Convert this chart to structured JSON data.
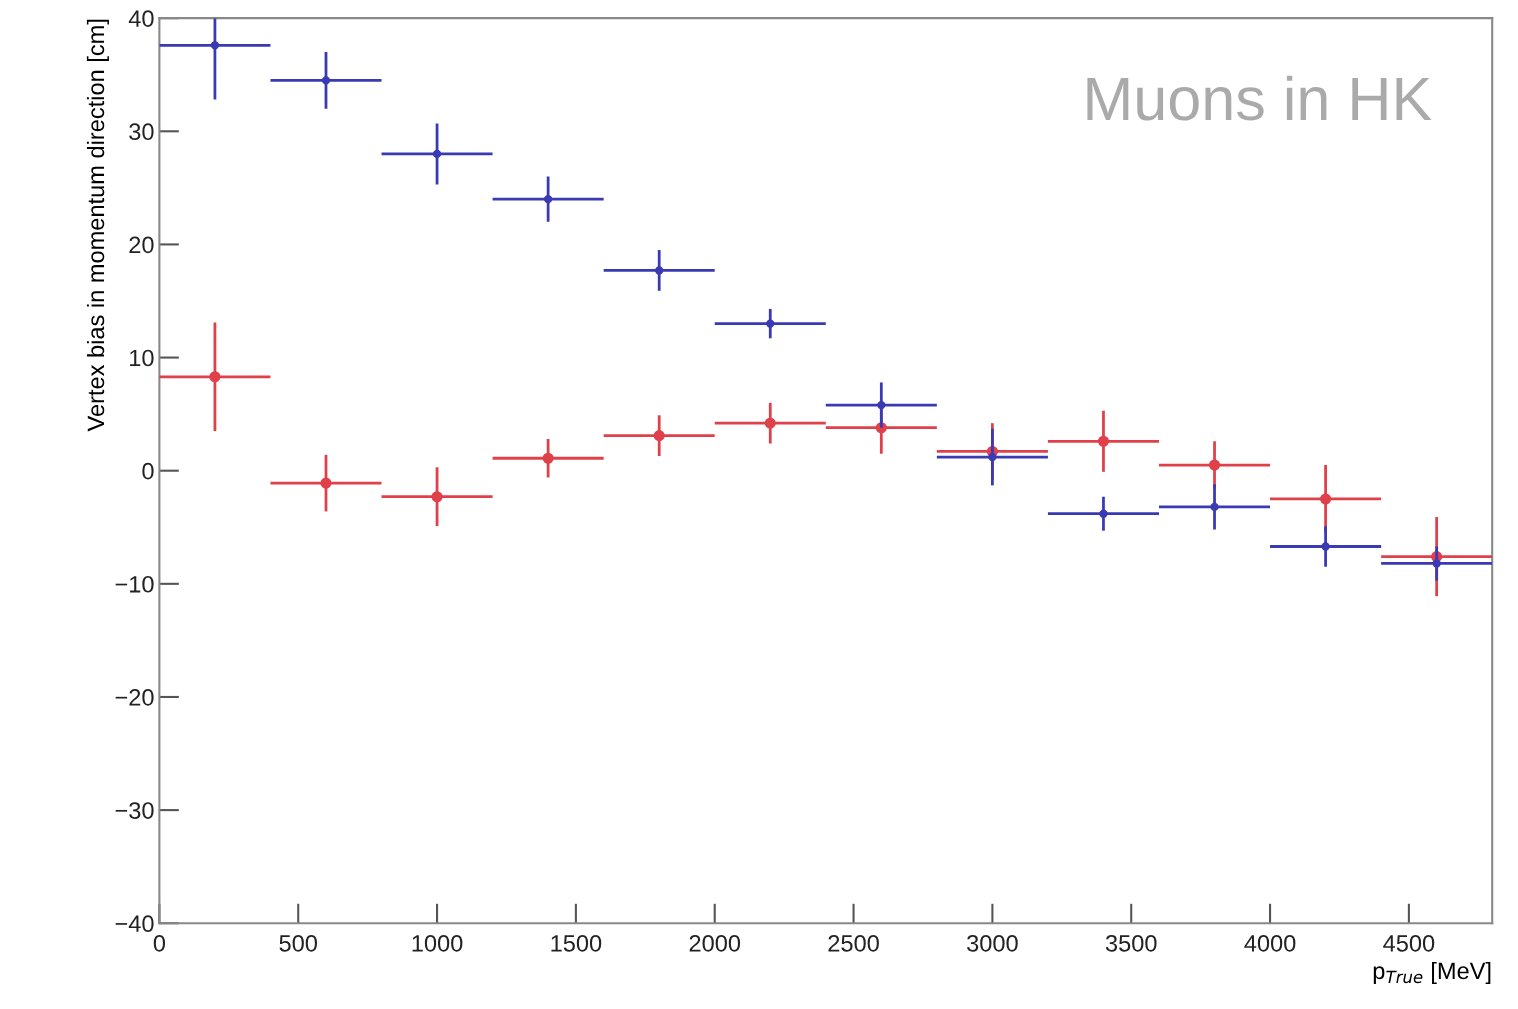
{
  "chart_data": {
    "type": "scatter",
    "xlabel": "p$_{True}$ [MeV]",
    "ylabel": "Vertex bias in momentum direction [cm]",
    "annotations": [
      "Muons in HK"
    ],
    "x": [
      200,
      600,
      1000,
      1400,
      1800,
      2200,
      2600,
      3000,
      3400,
      3800,
      4200,
      4600
    ],
    "series": [
      {
        "color": "#3a3ab4",
        "values": [
          37.6,
          34.5,
          28,
          24,
          17.7,
          13,
          5.8,
          1.2,
          -3.8,
          -3.2,
          -6.7,
          -8.2
        ],
        "errors": [
          [
            32.8,
            40
          ],
          2.5,
          2.7,
          2,
          1.8,
          1.3,
          2,
          2.5,
          1.5,
          2,
          1.8,
          1.5
        ],
        "xerrors": [
          200,
          200,
          200,
          200,
          200,
          200,
          200,
          200,
          200,
          200,
          200,
          200
        ]
      },
      {
        "color": "#e0404a",
        "values": [
          8.3,
          -1.1,
          -2.3,
          1.1,
          3.1,
          4.2,
          3.8,
          1.7,
          2.6,
          0.5,
          -2.5,
          -7.6
        ],
        "errors": [
          4.8,
          2.5,
          2.6,
          1.7,
          1.8,
          1.8,
          2.3,
          2.5,
          2.7,
          2.1,
          3,
          3.5
        ],
        "xerrors": [
          200,
          200,
          200,
          200,
          200,
          200,
          200,
          200,
          200,
          200,
          200,
          200
        ]
      }
    ],
    "xlim": [
      0,
      4800
    ],
    "xticks": [
      0,
      500,
      1000,
      1500,
      2000,
      2500,
      3000,
      3500,
      4000,
      4500
    ],
    "ylim": [
      -40,
      40
    ],
    "yticks": [
      -40,
      -30,
      -20,
      -10,
      0,
      10,
      20,
      30,
      40
    ],
    "marker": "circle",
    "grid": false
  }
}
